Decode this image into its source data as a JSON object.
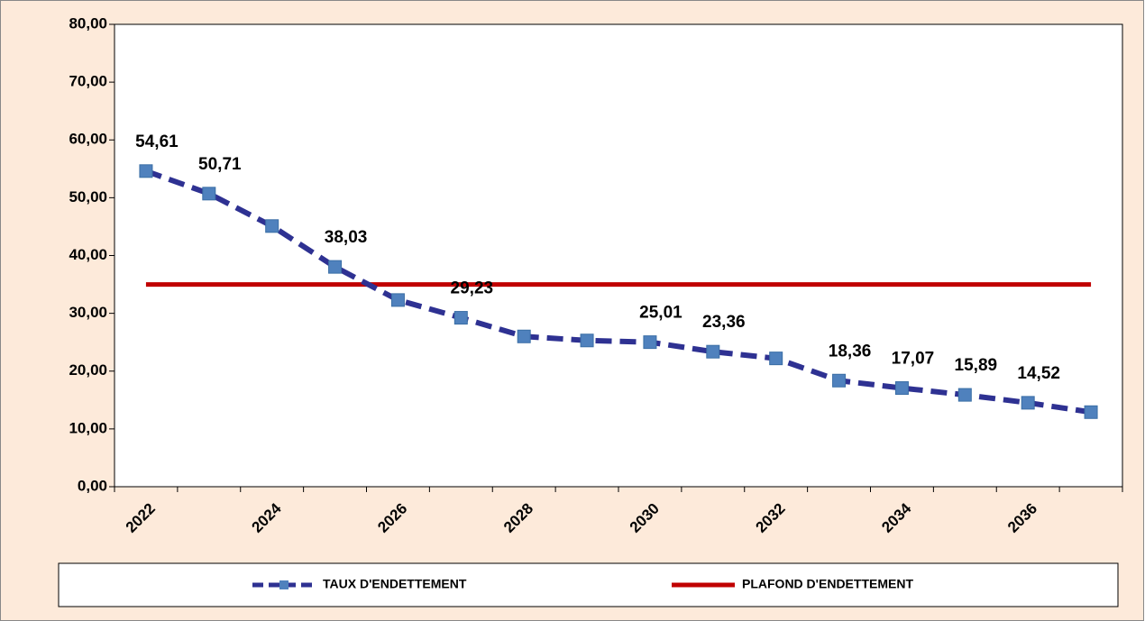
{
  "chart_data": {
    "type": "line",
    "categories": [
      "2022",
      null,
      "2024",
      null,
      "2026",
      null,
      "2028",
      null,
      "2030",
      null,
      "2032",
      null,
      "2034",
      null,
      "2036",
      null
    ],
    "series": [
      {
        "name": "TAUX D'ENDETTEMENT",
        "color": "#2e3192",
        "marker_color": "#4f81bd",
        "values": [
          54.61,
          50.71,
          45.1,
          38.03,
          32.3,
          29.23,
          26.0,
          25.3,
          25.01,
          23.36,
          22.2,
          18.36,
          17.07,
          15.89,
          14.52,
          12.9
        ],
        "value_labels": [
          "54,61",
          "50,71",
          null,
          "38,03",
          null,
          "29,23",
          null,
          null,
          "25,01",
          "23,36",
          null,
          "18,36",
          "17,07",
          "15,89",
          "14,52",
          null
        ]
      },
      {
        "name": "PLAFOND D'ENDETTEMENT",
        "color": "#c00000",
        "values": [
          35,
          35,
          35,
          35,
          35,
          35,
          35,
          35,
          35,
          35,
          35,
          35,
          35,
          35,
          35,
          35
        ]
      }
    ],
    "ylim": [
      0,
      80
    ],
    "yticks": [
      {
        "value": 0,
        "label": "0,00"
      },
      {
        "value": 10,
        "label": "10,00"
      },
      {
        "value": 20,
        "label": "20,00"
      },
      {
        "value": 30,
        "label": "30,00"
      },
      {
        "value": 40,
        "label": "40,00"
      },
      {
        "value": 50,
        "label": "50,00"
      },
      {
        "value": 60,
        "label": "60,00"
      },
      {
        "value": 70,
        "label": "70,00"
      },
      {
        "value": 80,
        "label": "80,00"
      }
    ],
    "grid": false
  }
}
